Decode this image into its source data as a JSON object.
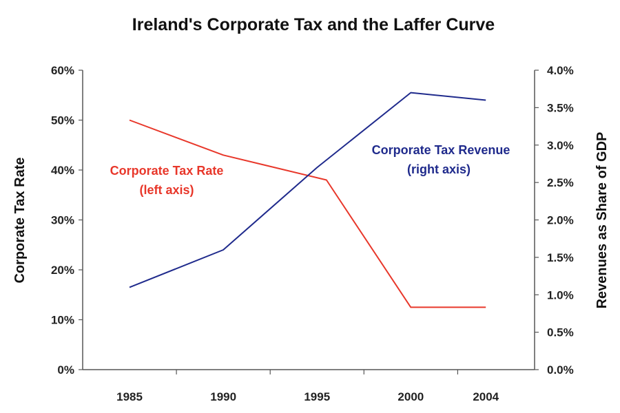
{
  "chart_data": {
    "type": "line",
    "title": "Ireland's Corporate Tax and the Laffer Curve",
    "xlabel": "",
    "ylabel": "Corporate Tax Rate",
    "y2label": "Revenues as Share of GDP",
    "x": [
      "1985",
      "1990",
      "1995",
      "2000",
      "2004"
    ],
    "ylim": [
      0,
      60
    ],
    "y2lim": [
      0,
      4.0
    ],
    "left_ticks": [
      "0%",
      "10%",
      "20%",
      "30%",
      "40%",
      "50%",
      "60%"
    ],
    "right_ticks": [
      "0.0%",
      "0.5%",
      "1.0%",
      "1.5%",
      "2.0%",
      "2.5%",
      "3.0%",
      "3.5%",
      "4.0%"
    ],
    "grid": false,
    "series": [
      {
        "name": "Corporate Tax Rate",
        "axis": "left",
        "color": "#e8372a",
        "points": [
          [
            1985,
            50
          ],
          [
            1990,
            43
          ],
          [
            1995.5,
            38
          ],
          [
            2000,
            12.5
          ],
          [
            2004,
            12.5
          ]
        ],
        "label_lines": [
          "Corporate Tax Rate",
          "(left axis)"
        ]
      },
      {
        "name": "Corporate Tax Revenue",
        "axis": "right",
        "color": "#1f2a8c",
        "points": [
          [
            1985,
            1.1
          ],
          [
            1990,
            1.6
          ],
          [
            1995,
            2.7
          ],
          [
            2000,
            3.7
          ],
          [
            2004,
            3.6
          ]
        ],
        "label_lines": [
          "Corporate Tax Revenue",
          "(right axis)"
        ]
      }
    ]
  }
}
